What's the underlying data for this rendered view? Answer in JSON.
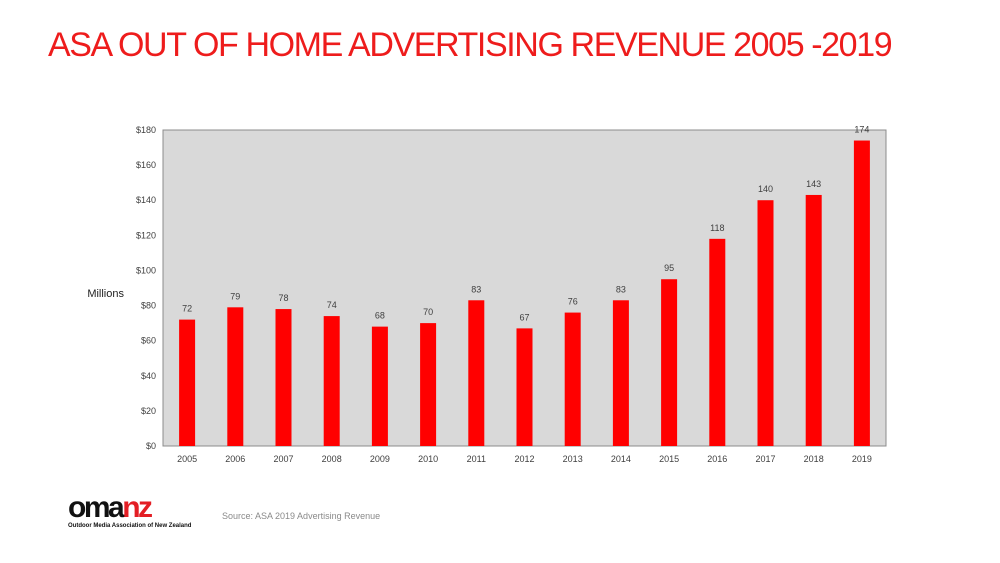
{
  "slide": {
    "title": "ASA OUT OF HOME ADVERTISING REVENUE 2005 -2019",
    "source": "Source: ASA 2019 Advertising Revenue"
  },
  "logo": {
    "word_part1": "oma",
    "word_part2": "nz",
    "tagline": "Outdoor Media Association of New Zealand"
  },
  "colors": {
    "title": "#ee1c1c",
    "bar": "#ff0000",
    "plot_background": "#d9d9d9",
    "logo_accent": "#e31e24"
  },
  "chart_data": {
    "type": "bar",
    "categories": [
      "2005",
      "2006",
      "2007",
      "2008",
      "2009",
      "2010",
      "2011",
      "2012",
      "2013",
      "2014",
      "2015",
      "2016",
      "2017",
      "2018",
      "2019"
    ],
    "values": [
      72,
      79,
      78,
      74,
      68,
      70,
      83,
      67,
      76,
      83,
      95,
      118,
      140,
      143,
      174
    ],
    "data_labels": [
      "72",
      "79",
      "78",
      "74",
      "68",
      "70",
      "83",
      "67",
      "76",
      "83",
      "95",
      "118",
      "140",
      "143",
      "174"
    ],
    "ylabel": "Millions",
    "ylim": [
      0,
      180
    ],
    "yticks": [
      0,
      20,
      40,
      60,
      80,
      100,
      120,
      140,
      160,
      180
    ],
    "ytick_labels": [
      "$0",
      "$20",
      "$40",
      "$60",
      "$80",
      "$100",
      "$120",
      "$140",
      "$160",
      "$180"
    ],
    "grid": false,
    "legend": "none"
  }
}
